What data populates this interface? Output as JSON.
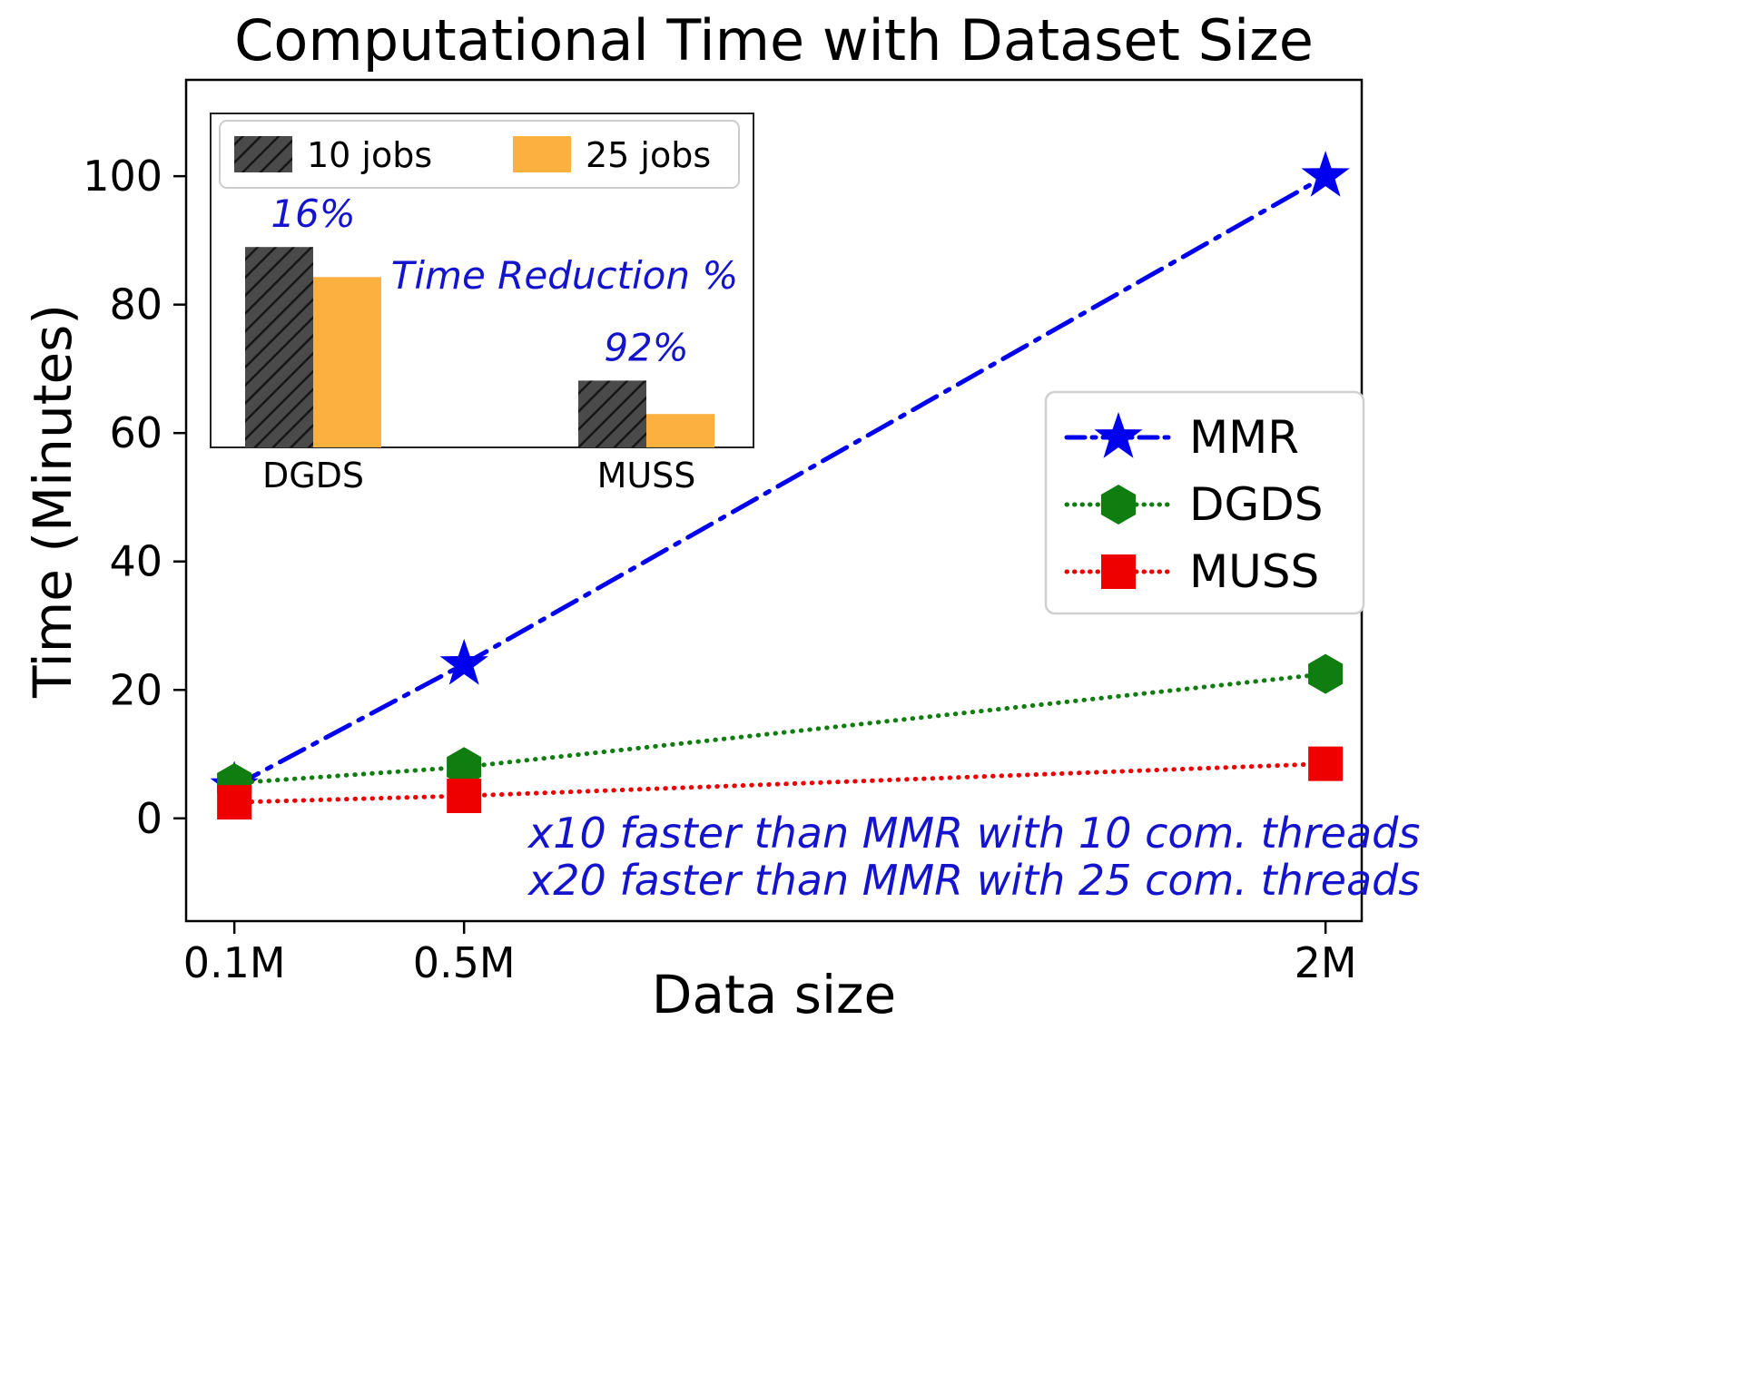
{
  "title": "Computational Time with Dataset Size",
  "chart_data": {
    "type": "line",
    "title": "Computational Time with Dataset Size",
    "xlabel": "Data size",
    "ylabel": "Time (Minutes)",
    "x_ticks": {
      "values": [
        0.1,
        0.5,
        2
      ],
      "labels": [
        "0.1M",
        "0.5M",
        "2M"
      ]
    },
    "y_ticks": [
      0,
      20,
      40,
      60,
      80,
      100
    ],
    "xlim": [
      0.016,
      2.063
    ],
    "ylim": [
      -16,
      115
    ],
    "grid": false,
    "legend_position": "center right",
    "series": [
      {
        "name": "MMR",
        "color": "#0000ee",
        "linestyle": "dashdot",
        "marker": "star",
        "x": [
          0.1,
          0.5,
          2
        ],
        "y": [
          5,
          24,
          100
        ]
      },
      {
        "name": "DGDS",
        "color": "#0f7d0f",
        "linestyle": "dotted",
        "marker": "hexagon",
        "x": [
          0.1,
          0.5,
          2
        ],
        "y": [
          5.5,
          8,
          22.5
        ]
      },
      {
        "name": "MUSS",
        "color": "#ee0000",
        "linestyle": "dotted",
        "marker": "square",
        "x": [
          0.1,
          0.5,
          2
        ],
        "y": [
          2.5,
          3.5,
          8.5
        ]
      }
    ],
    "annotations": [
      {
        "text": "x10 faster than MMR with 10 com. threads",
        "color": "#1414cc"
      },
      {
        "text": "x20 faster than MMR with 25 com. threads",
        "color": "#1414cc"
      }
    ],
    "inset": {
      "type": "bar",
      "categories": [
        "DGDS",
        "MUSS"
      ],
      "series": [
        {
          "name": "10 jobs",
          "color": "#4a4a4a",
          "hatch": true,
          "values": [
            0.6,
            0.2
          ]
        },
        {
          "name": "25 jobs",
          "color": "#fbb040",
          "hatch": false,
          "values": [
            0.51,
            0.1
          ]
        }
      ],
      "bar_labels": [
        "16%",
        "92%"
      ],
      "note": "Time Reduction %",
      "note_color": "#1414cc",
      "ylim": [
        0,
        1
      ]
    }
  }
}
